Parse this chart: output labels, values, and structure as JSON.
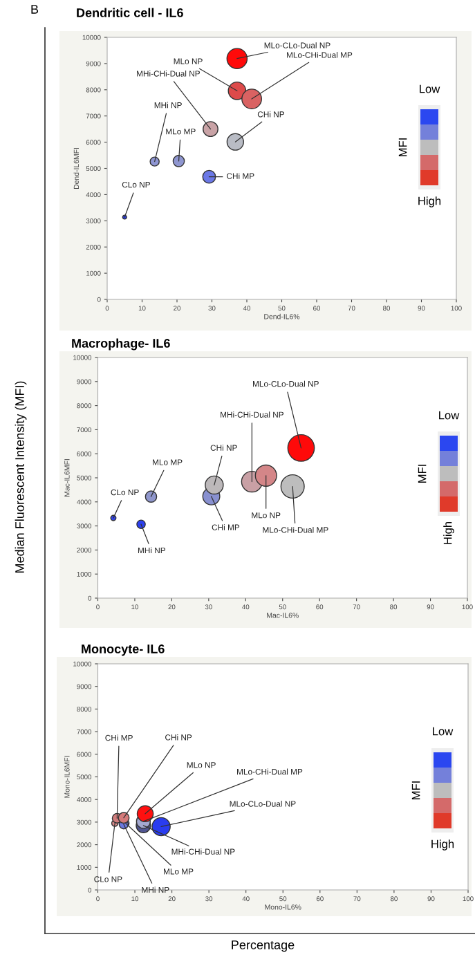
{
  "chart_data": [
    {
      "type": "bubble",
      "title": "Dendritic cell - IL6",
      "xlabel": "Dend-IL6%",
      "ylabel": "Dend-IL6MFI",
      "clabel": "MFI",
      "x": [
        37.2,
        37.2,
        41.4,
        29.6,
        36.7,
        13.6,
        20.5,
        29.2,
        5.0
      ],
      "values": [
        9190,
        7960,
        7650,
        6500,
        6010,
        5260,
        5280,
        4680,
        3140
      ],
      "sizes": [
        1,
        0.75,
        0.95,
        0.54,
        0.67,
        0.2,
        0.31,
        0.4,
        0.04
      ],
      "colors": [
        "#ff0a0a",
        "#dd4a4a",
        "#d96262",
        "#c9a3a6",
        "#b9bcc5",
        "#8f96d3",
        "#8f96d0",
        "#6b78e6",
        "#2a3de0"
      ],
      "xlim": [
        0,
        100
      ],
      "xticks": [
        0,
        10,
        20,
        30,
        40,
        50,
        60,
        70,
        80,
        90,
        100
      ],
      "ylim": [
        0,
        10000
      ],
      "yticks": [
        0,
        1000,
        2000,
        3000,
        4000,
        5000,
        6000,
        7000,
        8000,
        9000,
        10000
      ],
      "grid": false,
      "marker": "circle",
      "annotations": [
        {
          "text": "MLo-CLo-Dual NP",
          "x": 37.2,
          "y": 9190
        },
        {
          "text": "MLo NP",
          "x": 37.2,
          "y": 7960
        },
        {
          "text": "MLo-CHi-Dual MP",
          "x": 41.4,
          "y": 7650
        },
        {
          "text": "MHi-CHi-Dual NP",
          "x": 29.6,
          "y": 6500
        },
        {
          "text": "CHi NP",
          "x": 36.7,
          "y": 6010
        },
        {
          "text": "MHi NP",
          "x": 13.6,
          "y": 5260
        },
        {
          "text": "MLo MP",
          "x": 20.5,
          "y": 5280
        },
        {
          "text": "CHi MP",
          "x": 29.2,
          "y": 4680
        },
        {
          "text": "CLo NP",
          "x": 5.0,
          "y": 3140
        },
        "Low",
        "High",
        "B",
        "Median Fluorescent Intensity (MFI)",
        "Percentage"
      ]
    },
    {
      "type": "bubble",
      "title": "Macrophage- IL6",
      "xlabel": "Mac-IL6%",
      "ylabel": "Mac-IL6MFI",
      "clabel": "MFI",
      "x": [
        55.0,
        41.7,
        45.5,
        52.7,
        30.7,
        31.5,
        14.4,
        4.2,
        11.7
      ],
      "values": [
        6240,
        4840,
        5090,
        4640,
        4230,
        4700,
        4220,
        3330,
        3070
      ],
      "sizes": [
        1,
        0.61,
        0.64,
        0.77,
        0.41,
        0.46,
        0.18,
        0.04,
        0.1
      ],
      "colors": [
        "#ff0a0a",
        "#c9a0a5",
        "#d48688",
        "#bdbdbd",
        "#8890d0",
        "#bcb8ba",
        "#8f96cc",
        "#3344ee",
        "#2c40f0"
      ],
      "xlim": [
        0,
        100
      ],
      "xticks": [
        0,
        10,
        20,
        30,
        40,
        50,
        60,
        70,
        80,
        90,
        100
      ],
      "ylim": [
        0,
        10000
      ],
      "yticks": [
        0,
        1000,
        2000,
        3000,
        4000,
        5000,
        6000,
        7000,
        8000,
        9000,
        10000
      ],
      "grid": false,
      "marker": "circle",
      "annotations": [
        {
          "text": "MLo-CLo-Dual NP",
          "x": 55.0,
          "y": 6240
        },
        {
          "text": "MHi-CHi-Dual NP",
          "x": 41.7,
          "y": 4840
        },
        {
          "text": "MLo NP",
          "x": 45.5,
          "y": 5090
        },
        {
          "text": "MLo-CHi-Dual MP",
          "x": 52.7,
          "y": 4640
        },
        {
          "text": "CHi MP",
          "x": 30.7,
          "y": 4230
        },
        {
          "text": "CHi NP",
          "x": 31.5,
          "y": 4700
        },
        {
          "text": "MLo MP",
          "x": 14.4,
          "y": 4220
        },
        {
          "text": "CLo NP",
          "x": 4.2,
          "y": 3330
        },
        {
          "text": "MHi NP",
          "x": 11.7,
          "y": 3070
        },
        "Low",
        "High"
      ]
    },
    {
      "type": "bubble",
      "title": "Monocyte- IL6",
      "xlabel": "Mono-IL6%",
      "ylabel": "Mono-IL6MFI",
      "clabel": "MFI",
      "x": [
        4.6,
        7.5,
        5.2,
        7.0,
        7.0,
        12.3,
        12.3,
        12.8,
        17.1
      ],
      "values": [
        2950,
        2950,
        3170,
        2900,
        3190,
        2850,
        3030,
        3370,
        2800
      ],
      "sizes": [
        0.12,
        0.15,
        0.28,
        0.25,
        0.35,
        0.63,
        0.58,
        0.78,
        1
      ],
      "colors": [
        "#d88a8a",
        "#8f96cc",
        "#d07c7c",
        "#6b78e0",
        "#d47a7a",
        "#505590",
        "#a3a8d0",
        "#ff1010",
        "#2a3cf0"
      ],
      "xlim": [
        0,
        100
      ],
      "xticks": [
        0,
        10,
        20,
        30,
        40,
        50,
        60,
        70,
        80,
        90,
        100
      ],
      "ylim": [
        0,
        10000
      ],
      "yticks": [
        0,
        1000,
        2000,
        3000,
        4000,
        5000,
        6000,
        7000,
        8000,
        9000,
        10000
      ],
      "grid": false,
      "marker": "circle",
      "annotations": [
        {
          "text": "CLo NP",
          "x": 4.6,
          "y": 2950
        },
        {
          "text": "MLo MP",
          "x": 7.5,
          "y": 2950
        },
        {
          "text": "CHi MP",
          "x": 5.2,
          "y": 3170
        },
        {
          "text": "MHi NP",
          "x": 7.0,
          "y": 2900
        },
        {
          "text": "CHi NP",
          "x": 7.0,
          "y": 3190
        },
        {
          "text": "MHi-CHi-Dual NP",
          "x": 12.3,
          "y": 2850
        },
        {
          "text": "MLo-CHi-Dual MP",
          "x": 12.3,
          "y": 3030
        },
        {
          "text": "MLo NP",
          "x": 12.8,
          "y": 3370
        },
        {
          "text": "MLo-CLo-Dual NP",
          "x": 17.1,
          "y": 2800
        },
        "Low",
        "High"
      ]
    }
  ]
}
